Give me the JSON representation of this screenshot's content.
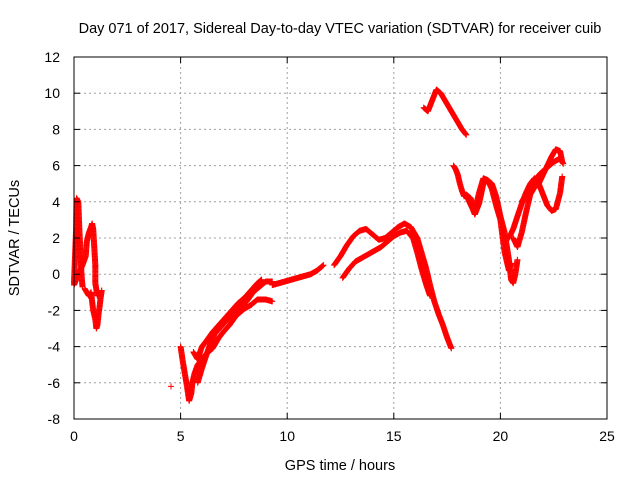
{
  "chart_data": {
    "type": "scatter",
    "title": "Day 071 of 2017, Sidereal Day-to-day VTEC variation (SDTVAR) for receiver cuib",
    "xlabel": "GPS time / hours",
    "ylabel": "SDTVAR / TECUs",
    "xlim": [
      0,
      25
    ],
    "ylim": [
      -8,
      12
    ],
    "xticks": [
      "0",
      "5",
      "10",
      "15",
      "20",
      "25"
    ],
    "yticks": [
      "-8",
      "-6",
      "-4",
      "-2",
      "0",
      "2",
      "4",
      "6",
      "8",
      "10",
      "12"
    ],
    "grid": true,
    "legend": "none",
    "marker": "+",
    "series_color": "#ff0000",
    "series": [
      {
        "segments": [
          [
            [
              0.0,
              -0.5
            ],
            [
              0.05,
              1.0
            ],
            [
              0.1,
              2.5
            ],
            [
              0.12,
              4.2
            ],
            [
              0.2,
              4.0
            ],
            [
              0.25,
              2.5
            ],
            [
              0.3,
              1.2
            ],
            [
              0.35,
              0.0
            ],
            [
              0.4,
              -0.7
            ]
          ],
          [
            [
              0.0,
              -0.6
            ],
            [
              0.2,
              0.0
            ],
            [
              0.4,
              0.5
            ],
            [
              0.55,
              1.0
            ],
            [
              0.6,
              1.8
            ],
            [
              0.7,
              2.3
            ],
            [
              0.8,
              2.6
            ],
            [
              0.85,
              2.8
            ],
            [
              0.9,
              2.5
            ],
            [
              0.95,
              1.5
            ],
            [
              1.0,
              0.5
            ],
            [
              1.0,
              -0.5
            ],
            [
              1.1,
              -1.2
            ]
          ],
          [
            [
              0.5,
              -0.8
            ],
            [
              0.6,
              -1.0
            ],
            [
              0.7,
              -1.2
            ],
            [
              0.8,
              -1.0
            ],
            [
              0.85,
              -1.5
            ],
            [
              0.9,
              -2.0
            ],
            [
              1.0,
              -2.5
            ],
            [
              1.05,
              -3.0
            ],
            [
              1.1,
              -2.8
            ],
            [
              1.15,
              -2.2
            ],
            [
              1.2,
              -1.8
            ],
            [
              1.25,
              -1.3
            ],
            [
              1.3,
              -0.9
            ]
          ],
          [
            [
              4.55,
              -6.2
            ]
          ],
          [
            [
              5.0,
              -4.0
            ],
            [
              5.1,
              -4.8
            ],
            [
              5.2,
              -5.5
            ],
            [
              5.3,
              -6.2
            ],
            [
              5.4,
              -7.0
            ],
            [
              5.5,
              -6.6
            ],
            [
              5.55,
              -6.0
            ],
            [
              5.65,
              -5.5
            ],
            [
              5.8,
              -5.0
            ],
            [
              6.0,
              -4.7
            ],
            [
              6.2,
              -4.4
            ],
            [
              6.5,
              -4.1
            ],
            [
              6.8,
              -3.5
            ],
            [
              7.0,
              -3.2
            ],
            [
              7.3,
              -2.8
            ],
            [
              7.6,
              -2.3
            ],
            [
              8.0,
              -1.9
            ],
            [
              8.3,
              -1.7
            ],
            [
              8.6,
              -1.4
            ],
            [
              9.0,
              -1.4
            ],
            [
              9.3,
              -1.5
            ]
          ],
          [
            [
              5.8,
              -6.0
            ],
            [
              6.0,
              -5.2
            ],
            [
              6.2,
              -4.5
            ],
            [
              6.4,
              -3.8
            ],
            [
              6.6,
              -3.3
            ],
            [
              6.9,
              -2.9
            ],
            [
              7.2,
              -2.5
            ],
            [
              7.5,
              -2.1
            ],
            [
              7.8,
              -1.8
            ],
            [
              8.1,
              -1.5
            ],
            [
              8.4,
              -1.0
            ],
            [
              8.7,
              -0.7
            ],
            [
              9.0,
              -0.4
            ],
            [
              9.3,
              -0.4
            ]
          ],
          [
            [
              5.6,
              -4.3
            ],
            [
              5.8,
              -4.7
            ],
            [
              6.0,
              -4.0
            ],
            [
              6.2,
              -3.7
            ],
            [
              6.5,
              -3.2
            ],
            [
              6.8,
              -2.8
            ],
            [
              7.1,
              -2.4
            ],
            [
              7.4,
              -2.0
            ],
            [
              7.7,
              -1.6
            ],
            [
              8.0,
              -1.3
            ],
            [
              8.3,
              -0.9
            ],
            [
              8.6,
              -0.5
            ],
            [
              8.8,
              -0.3
            ]
          ],
          [
            [
              9.3,
              -0.6
            ],
            [
              9.6,
              -0.5
            ],
            [
              9.9,
              -0.4
            ],
            [
              10.2,
              -0.3
            ],
            [
              10.5,
              -0.2
            ],
            [
              10.8,
              -0.1
            ],
            [
              11.1,
              0.0
            ],
            [
              11.4,
              0.2
            ],
            [
              11.7,
              0.5
            ]
          ],
          [
            [
              12.2,
              0.5
            ],
            [
              12.5,
              1.0
            ],
            [
              12.8,
              1.6
            ],
            [
              13.1,
              2.1
            ],
            [
              13.4,
              2.4
            ],
            [
              13.7,
              2.5
            ],
            [
              14.0,
              2.2
            ],
            [
              14.3,
              1.9
            ],
            [
              14.6,
              2.0
            ],
            [
              14.9,
              2.3
            ],
            [
              15.2,
              2.6
            ],
            [
              15.5,
              2.8
            ],
            [
              15.8,
              2.6
            ],
            [
              16.1,
              2.0
            ],
            [
              16.3,
              1.2
            ],
            [
              16.5,
              0.4
            ],
            [
              16.7,
              -0.6
            ],
            [
              16.9,
              -1.5
            ],
            [
              17.1,
              -2.2
            ],
            [
              17.3,
              -2.8
            ],
            [
              17.5,
              -3.5
            ],
            [
              17.7,
              -4.1
            ]
          ],
          [
            [
              12.6,
              -0.2
            ],
            [
              12.9,
              0.3
            ],
            [
              13.2,
              0.7
            ],
            [
              13.5,
              0.9
            ],
            [
              13.8,
              1.1
            ],
            [
              14.1,
              1.3
            ],
            [
              14.4,
              1.5
            ],
            [
              14.7,
              1.8
            ],
            [
              15.0,
              2.1
            ],
            [
              15.3,
              2.3
            ],
            [
              15.6,
              2.4
            ],
            [
              15.9,
              2.0
            ],
            [
              16.1,
              1.2
            ],
            [
              16.3,
              0.3
            ],
            [
              16.5,
              -0.5
            ],
            [
              16.7,
              -1.2
            ]
          ],
          [
            [
              16.4,
              9.2
            ],
            [
              16.6,
              9.0
            ],
            [
              16.8,
              9.6
            ],
            [
              17.0,
              10.2
            ],
            [
              17.2,
              10.0
            ],
            [
              17.4,
              9.6
            ],
            [
              17.6,
              9.2
            ],
            [
              17.8,
              8.8
            ],
            [
              18.0,
              8.4
            ],
            [
              18.2,
              8.0
            ],
            [
              18.4,
              7.7
            ]
          ],
          [
            [
              17.8,
              6.0
            ],
            [
              17.9,
              5.8
            ],
            [
              18.0,
              5.5
            ],
            [
              18.1,
              5.0
            ],
            [
              18.2,
              4.6
            ],
            [
              18.3,
              4.3
            ],
            [
              18.4,
              4.4
            ],
            [
              18.5,
              4.1
            ],
            [
              18.7,
              3.6
            ],
            [
              18.8,
              3.3
            ],
            [
              19.0,
              3.9
            ],
            [
              19.2,
              5.0
            ],
            [
              19.4,
              5.2
            ],
            [
              19.6,
              5.0
            ],
            [
              19.8,
              4.3
            ],
            [
              20.0,
              3.2
            ],
            [
              20.2,
              2.3
            ],
            [
              20.4,
              0.8
            ],
            [
              20.5,
              -0.3
            ],
            [
              20.6,
              -0.5
            ],
            [
              20.7,
              0.0
            ],
            [
              20.8,
              0.8
            ]
          ],
          [
            [
              18.4,
              4.4
            ],
            [
              18.6,
              4.2
            ],
            [
              18.8,
              3.5
            ],
            [
              19.0,
              4.5
            ],
            [
              19.2,
              5.3
            ],
            [
              19.4,
              5.2
            ],
            [
              19.6,
              4.7
            ],
            [
              19.8,
              3.8
            ],
            [
              20.0,
              3.0
            ],
            [
              20.2,
              1.2
            ],
            [
              20.4,
              0.2
            ],
            [
              20.5,
              0.6
            ]
          ],
          [
            [
              20.4,
              2.0
            ],
            [
              20.6,
              2.5
            ],
            [
              20.8,
              3.2
            ],
            [
              21.0,
              3.9
            ],
            [
              21.2,
              4.5
            ],
            [
              21.4,
              5.0
            ],
            [
              21.6,
              5.3
            ],
            [
              21.8,
              5.0
            ],
            [
              22.0,
              4.4
            ],
            [
              22.2,
              3.8
            ],
            [
              22.4,
              3.5
            ],
            [
              22.6,
              3.6
            ],
            [
              22.8,
              4.5
            ],
            [
              22.9,
              5.4
            ]
          ],
          [
            [
              20.6,
              2.0
            ],
            [
              20.8,
              1.5
            ],
            [
              21.0,
              2.3
            ],
            [
              21.2,
              3.4
            ],
            [
              21.4,
              4.4
            ],
            [
              21.6,
              4.8
            ],
            [
              21.8,
              5.0
            ],
            [
              22.0,
              5.5
            ],
            [
              22.2,
              6.0
            ],
            [
              22.4,
              6.5
            ],
            [
              22.6,
              6.9
            ],
            [
              22.8,
              6.8
            ],
            [
              22.9,
              6.2
            ]
          ],
          [
            [
              21.0,
              4.0
            ],
            [
              21.3,
              4.6
            ],
            [
              21.6,
              5.2
            ],
            [
              21.9,
              5.6
            ],
            [
              22.2,
              5.9
            ],
            [
              22.5,
              6.2
            ],
            [
              22.8,
              6.4
            ],
            [
              22.95,
              6.1
            ]
          ]
        ]
      }
    ]
  }
}
